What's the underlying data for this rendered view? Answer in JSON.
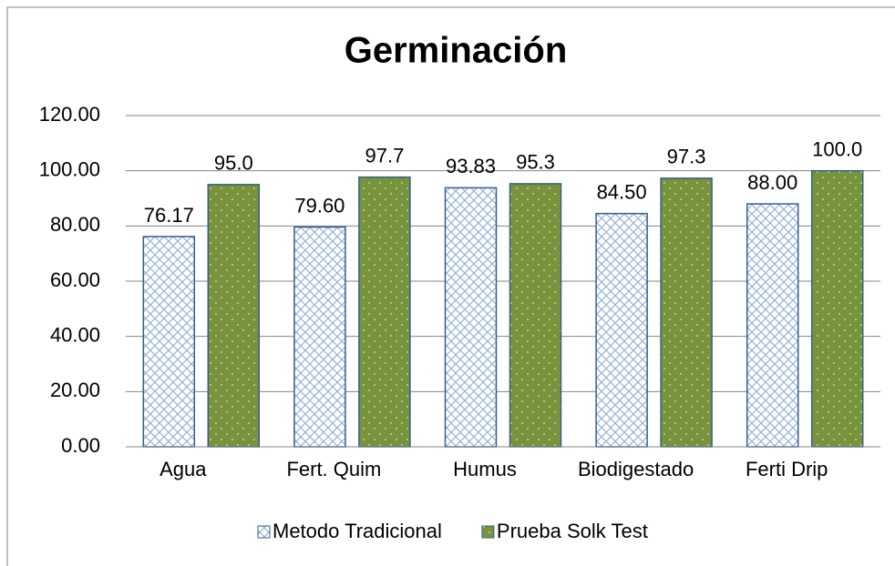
{
  "chart_data": {
    "type": "bar",
    "title": "Germinación",
    "categories": [
      "Agua",
      "Fert. Quim",
      "Humus",
      "Biodigestado",
      "Ferti Drip"
    ],
    "series": [
      {
        "name": "Metodo Tradicional",
        "color": "#95b3d7",
        "values": [
          76.17,
          79.6,
          93.83,
          84.5,
          88.0
        ],
        "value_labels": [
          "76.17",
          "79.60",
          "93.83",
          "84.50",
          "88.00"
        ]
      },
      {
        "name": "Prueba Solk Test",
        "color": "#77933c",
        "values": [
          95.0,
          97.7,
          95.3,
          97.3,
          100.0
        ],
        "value_labels": [
          "95.0",
          "97.7",
          "95.3",
          "97.3",
          "100.0"
        ]
      }
    ],
    "ylim": [
      0,
      120
    ],
    "yticks": [
      {
        "value": 0,
        "label": "0.00"
      },
      {
        "value": 20,
        "label": "20.00"
      },
      {
        "value": 40,
        "label": "40.00"
      },
      {
        "value": 60,
        "label": "60.00"
      },
      {
        "value": 80,
        "label": "80.00"
      },
      {
        "value": 100,
        "label": "100.00"
      },
      {
        "value": 120,
        "label": "120.00"
      }
    ],
    "grid": true,
    "legend": "bottom"
  }
}
